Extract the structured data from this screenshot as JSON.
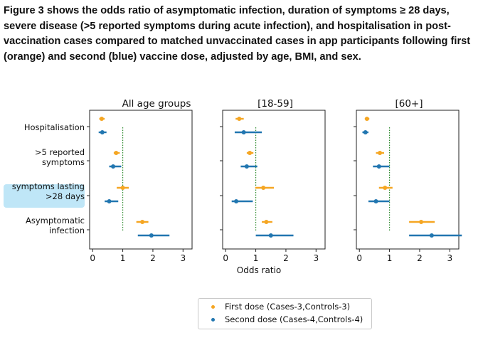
{
  "caption": "Figure 3 shows the odds ratio of asymptomatic infection, duration of symptoms ≥ 28 days, severe disease (>5 reported symptoms during acute infection), and hospitalisation in post-vaccination cases compared to matched unvaccinated cases in app participants following first (orange) and second (blue) vaccine dose, adjusted by age, BMI, and sex.",
  "colors": {
    "first_dose": "#f5a623",
    "second_dose": "#2176b0",
    "reference_line": "#2e8b2e",
    "highlight": "#bfe6f7"
  },
  "chart_data": {
    "type": "scatter",
    "xlabel": "Odds ratio",
    "xlim": [
      -0.1,
      3.3
    ],
    "xticks": [
      "0",
      "1",
      "2",
      "3"
    ],
    "xtick_values": [
      0,
      1,
      2,
      3
    ],
    "reference_line_x": 1,
    "grid": false,
    "legend_placement": "bottom-center",
    "legend": [
      {
        "label": "First dose (Cases-3,Controls-3)",
        "color": "#f5a623"
      },
      {
        "label": "Second dose (Cases-4,Controls-4)",
        "color": "#2176b0"
      }
    ],
    "categories": [
      {
        "label_lines": [
          "Hospitalisation"
        ]
      },
      {
        "label_lines": [
          ">5 reported",
          "symptoms"
        ]
      },
      {
        "label_lines": [
          "symptoms lasting",
          ">28 days"
        ],
        "highlighted": true
      },
      {
        "label_lines": [
          "Asymptomatic",
          "infection"
        ]
      }
    ],
    "panels": [
      {
        "title": "All age groups",
        "series": [
          {
            "name": "First dose",
            "points": [
              {
                "or": 0.3,
                "lo": 0.22,
                "hi": 0.4
              },
              {
                "or": 0.78,
                "lo": 0.7,
                "hi": 0.9
              },
              {
                "or": 1.0,
                "lo": 0.8,
                "hi": 1.2
              },
              {
                "or": 1.65,
                "lo": 1.45,
                "hi": 1.85
              }
            ]
          },
          {
            "name": "Second dose",
            "points": [
              {
                "or": 0.32,
                "lo": 0.2,
                "hi": 0.46
              },
              {
                "or": 0.68,
                "lo": 0.55,
                "hi": 0.95
              },
              {
                "or": 0.55,
                "lo": 0.4,
                "hi": 0.85
              },
              {
                "or": 1.95,
                "lo": 1.5,
                "hi": 2.55
              }
            ]
          }
        ]
      },
      {
        "title": "[18-59]",
        "series": [
          {
            "name": "First dose",
            "points": [
              {
                "or": 0.45,
                "lo": 0.33,
                "hi": 0.6
              },
              {
                "or": 0.8,
                "lo": 0.7,
                "hi": 0.92
              },
              {
                "or": 1.25,
                "lo": 0.98,
                "hi": 1.6
              },
              {
                "or": 1.35,
                "lo": 1.2,
                "hi": 1.55
              }
            ]
          },
          {
            "name": "Second dose",
            "points": [
              {
                "or": 0.6,
                "lo": 0.3,
                "hi": 1.2
              },
              {
                "or": 0.7,
                "lo": 0.5,
                "hi": 1.05
              },
              {
                "or": 0.35,
                "lo": 0.2,
                "hi": 0.9
              },
              {
                "or": 1.5,
                "lo": 1.0,
                "hi": 2.25
              }
            ]
          }
        ]
      },
      {
        "title": "[60+]",
        "series": [
          {
            "name": "First dose",
            "points": [
              {
                "or": 0.25,
                "lo": 0.18,
                "hi": 0.33
              },
              {
                "or": 0.68,
                "lo": 0.55,
                "hi": 0.82
              },
              {
                "or": 0.85,
                "lo": 0.65,
                "hi": 1.1
              },
              {
                "or": 2.05,
                "lo": 1.65,
                "hi": 2.5
              }
            ]
          },
          {
            "name": "Second dose",
            "points": [
              {
                "or": 0.2,
                "lo": 0.1,
                "hi": 0.3
              },
              {
                "or": 0.65,
                "lo": 0.45,
                "hi": 1.0
              },
              {
                "or": 0.55,
                "lo": 0.3,
                "hi": 1.0
              },
              {
                "or": 2.4,
                "lo": 1.65,
                "hi": 3.4
              }
            ]
          }
        ]
      }
    ]
  }
}
